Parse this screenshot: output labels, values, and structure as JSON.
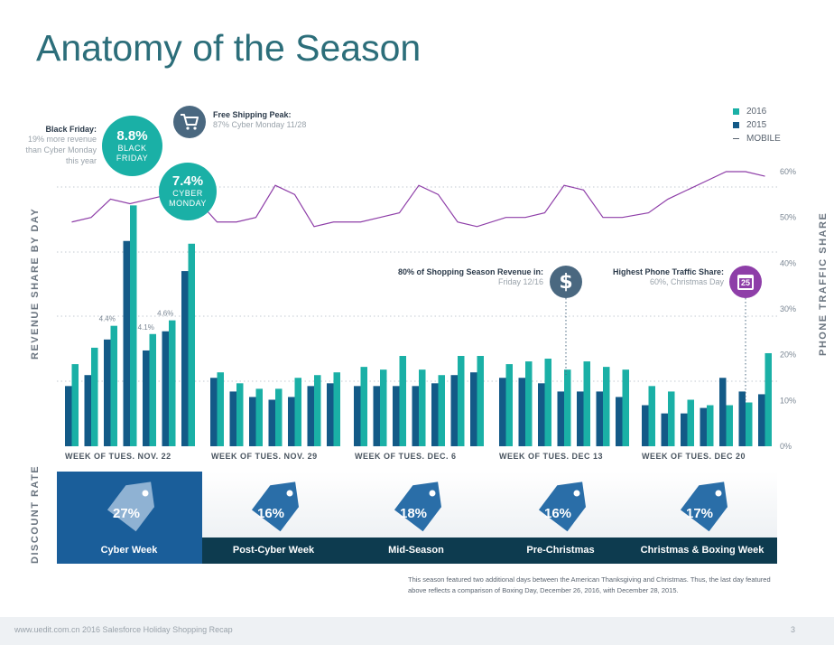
{
  "title": "Anatomy of the Season",
  "colors": {
    "title": "#2c6e7a",
    "bar_2016": "#1ab0a6",
    "bar_2015": "#135a87",
    "mobile_line": "#8e3ea8",
    "navy": "#1e3a56",
    "dark_teal": "#0d3b4f",
    "cyber_blue": "#1a5e9a",
    "tag_blue": "#2a6ea8",
    "gray_axis": "#7b8794",
    "calendar_purple": "#8e3ea8",
    "cart_slate": "#4a6880"
  },
  "legend": {
    "items": [
      {
        "label": "2016",
        "color": "#1ab0a6"
      },
      {
        "label": "2015",
        "color": "#135a87"
      },
      {
        "label": "MOBILE",
        "color": "#5a6470"
      }
    ]
  },
  "axes": {
    "left_title": "REVENUE SHARE BY DAY",
    "right_title": "PHONE TRAFFIC SHARE",
    "right_ticks": [
      "0%",
      "10%",
      "20%",
      "30%",
      "40%",
      "50%",
      "60%"
    ]
  },
  "callouts": {
    "black_friday": {
      "title": "Black Friday:",
      "lines": [
        "19% more revenue",
        "than Cyber Monday",
        "this year"
      ]
    },
    "free_shipping": {
      "title": "Free Shipping Peak:",
      "sub": "87% Cyber Monday 11/28"
    },
    "shopping_revenue": {
      "title": "80% of Shopping Season Revenue in:",
      "sub": "Friday 12/16"
    },
    "phone_traffic": {
      "title": "Highest Phone Traffic Share:",
      "sub": "60%, Christmas Day"
    }
  },
  "badges": {
    "black_friday": {
      "value": "8.8%",
      "line1": "BLACK",
      "line2": "FRIDAY"
    },
    "cyber_monday": {
      "value": "7.4%",
      "line1": "CYBER",
      "line2": "MONDAY"
    },
    "calendar_day": "25",
    "dollar": "$"
  },
  "discount": {
    "axis_title": "DISCOUNT RATE",
    "segments": [
      {
        "label": "Cyber Week",
        "rate": "27%"
      },
      {
        "label": "Post-Cyber Week",
        "rate": "16%"
      },
      {
        "label": "Mid-Season",
        "rate": "18%"
      },
      {
        "label": "Pre-Christmas",
        "rate": "16%"
      },
      {
        "label": "Christmas & Boxing Week",
        "rate": "17%"
      }
    ]
  },
  "footnote": "This season featured two additional days between the American Thanksgiving and Christmas. Thus, the last day featured above reflects a comparison of Boxing Day, December 26, 2016, with December 28, 2015.",
  "footer": {
    "text": "www.uedit.com.cn  2016 Salesforce Holiday Shopping Recap",
    "page": "3"
  },
  "chart_data": {
    "type": "bar",
    "title": "Anatomy of the Season",
    "ylabel": "REVENUE SHARE BY DAY",
    "y2label": "PHONE TRAFFIC SHARE",
    "ylim": [
      0,
      10
    ],
    "y2lim": [
      0,
      60
    ],
    "weeks": [
      {
        "label": "WEEK OF TUES. NOV. 22",
        "days": [
          {
            "v2015": 2.2,
            "v2016": 3.0,
            "mobile": 49
          },
          {
            "v2015": 2.6,
            "v2016": 3.6,
            "mobile": 50
          },
          {
            "v2015": 3.9,
            "v2016": 4.4,
            "mobile": 54
          },
          {
            "v2015": 7.5,
            "v2016": 8.8,
            "mobile": 53
          },
          {
            "v2015": 3.5,
            "v2016": 4.1,
            "mobile": 54
          },
          {
            "v2015": 4.2,
            "v2016": 4.6,
            "mobile": 55
          },
          {
            "v2015": 6.4,
            "v2016": 7.4,
            "mobile": 56
          }
        ]
      },
      {
        "label": "WEEK OF TUES. NOV. 29",
        "days": [
          {
            "v2015": 2.5,
            "v2016": 2.7,
            "mobile": 49
          },
          {
            "v2015": 2.0,
            "v2016": 2.3,
            "mobile": 49
          },
          {
            "v2015": 1.8,
            "v2016": 2.1,
            "mobile": 50
          },
          {
            "v2015": 1.7,
            "v2016": 2.1,
            "mobile": 57
          },
          {
            "v2015": 1.8,
            "v2016": 2.5,
            "mobile": 55
          },
          {
            "v2015": 2.2,
            "v2016": 2.6,
            "mobile": 48
          },
          {
            "v2015": 2.3,
            "v2016": 2.7,
            "mobile": 49
          }
        ]
      },
      {
        "label": "WEEK OF TUES. DEC. 6",
        "days": [
          {
            "v2015": 2.2,
            "v2016": 2.9,
            "mobile": 49
          },
          {
            "v2015": 2.2,
            "v2016": 2.8,
            "mobile": 50
          },
          {
            "v2015": 2.2,
            "v2016": 3.3,
            "mobile": 51
          },
          {
            "v2015": 2.2,
            "v2016": 2.8,
            "mobile": 57
          },
          {
            "v2015": 2.3,
            "v2016": 2.6,
            "mobile": 55
          },
          {
            "v2015": 2.6,
            "v2016": 3.3,
            "mobile": 49
          },
          {
            "v2015": 2.7,
            "v2016": 3.3,
            "mobile": 48
          }
        ]
      },
      {
        "label": "WEEK OF TUES. DEC 13",
        "days": [
          {
            "v2015": 2.5,
            "v2016": 3.0,
            "mobile": 50
          },
          {
            "v2015": 2.5,
            "v2016": 3.1,
            "mobile": 50
          },
          {
            "v2015": 2.3,
            "v2016": 3.2,
            "mobile": 51
          },
          {
            "v2015": 2.0,
            "v2016": 2.8,
            "mobile": 57
          },
          {
            "v2015": 2.0,
            "v2016": 3.1,
            "mobile": 56
          },
          {
            "v2015": 2.0,
            "v2016": 2.9,
            "mobile": 50
          },
          {
            "v2015": 1.8,
            "v2016": 2.8,
            "mobile": 50
          }
        ]
      },
      {
        "label": "WEEK OF TUES. DEC 20",
        "days": [
          {
            "v2015": 1.5,
            "v2016": 2.2,
            "mobile": 51
          },
          {
            "v2015": 1.2,
            "v2016": 2.0,
            "mobile": 54
          },
          {
            "v2015": 1.2,
            "v2016": 1.7,
            "mobile": 56
          },
          {
            "v2015": 1.4,
            "v2016": 1.5,
            "mobile": 58
          },
          {
            "v2015": 2.5,
            "v2016": 1.5,
            "mobile": 60
          },
          {
            "v2015": 2.0,
            "v2016": 1.6,
            "mobile": 60
          },
          {
            "v2015": 1.9,
            "v2016": 3.4,
            "mobile": 59
          }
        ]
      }
    ],
    "data_labels": [
      {
        "week": 0,
        "day": 2,
        "text": "4.4%"
      },
      {
        "week": 0,
        "day": 4,
        "text": "4.1%"
      },
      {
        "week": 0,
        "day": 5,
        "text": "4.6%"
      }
    ],
    "legend": [
      "2016",
      "2015",
      "MOBILE"
    ],
    "grid": true
  }
}
